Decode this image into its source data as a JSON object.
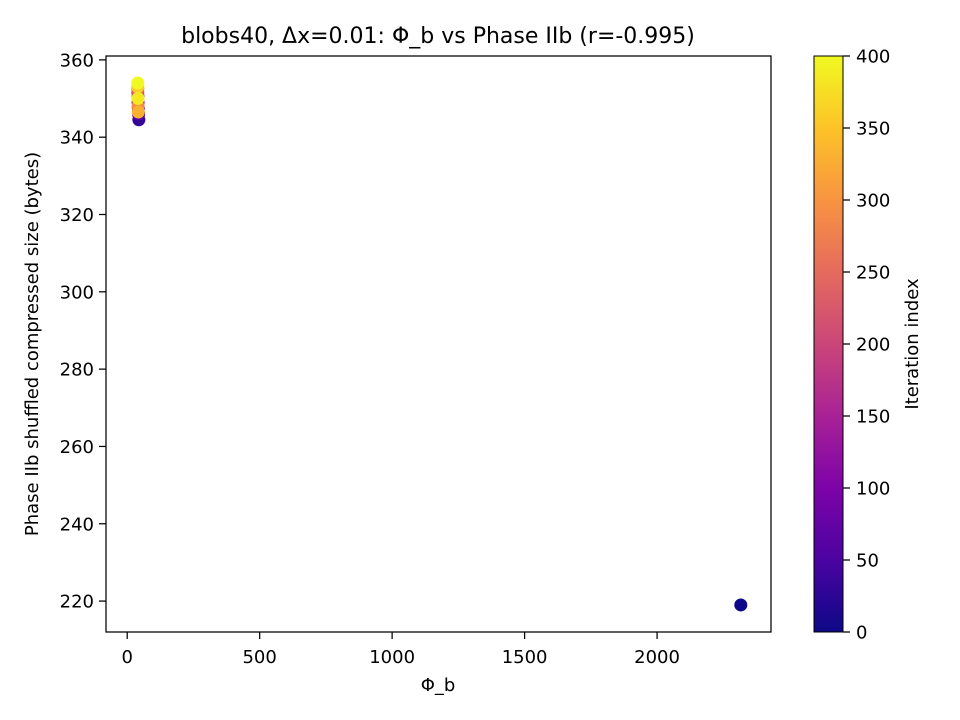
{
  "chart_data": {
    "type": "scatter",
    "title": "blobs40, Δx=0.01: Φ_b vs Phase IIb (r=-0.995)",
    "xlabel": "Φ_b",
    "ylabel": "Phase IIb shuffled compressed size (bytes)",
    "xlim": [
      -80,
      2430
    ],
    "ylim": [
      212,
      361
    ],
    "xticks": [
      0,
      500,
      1000,
      1500,
      2000
    ],
    "yticks": [
      220,
      240,
      260,
      280,
      300,
      320,
      340,
      360
    ],
    "grid": false,
    "colormap": "plasma",
    "colorbar": {
      "label": "Iteration index",
      "range": [
        0,
        400
      ],
      "ticks": [
        0,
        50,
        100,
        150,
        200,
        250,
        300,
        350,
        400
      ]
    },
    "points": [
      {
        "x": 2316,
        "y": 219,
        "c": 0
      },
      {
        "x": 44,
        "y": 344.5,
        "c": 30
      },
      {
        "x": 43,
        "y": 346,
        "c": 60
      },
      {
        "x": 42,
        "y": 347.5,
        "c": 90
      },
      {
        "x": 41,
        "y": 349,
        "c": 130
      },
      {
        "x": 41,
        "y": 350.5,
        "c": 170
      },
      {
        "x": 40,
        "y": 351.5,
        "c": 210
      },
      {
        "x": 40,
        "y": 352.5,
        "c": 250
      },
      {
        "x": 41,
        "y": 348,
        "c": 290
      },
      {
        "x": 42,
        "y": 346.5,
        "c": 330
      },
      {
        "x": 40,
        "y": 353,
        "c": 360
      },
      {
        "x": 41,
        "y": 350,
        "c": 385
      },
      {
        "x": 40,
        "y": 354,
        "c": 400
      }
    ]
  }
}
